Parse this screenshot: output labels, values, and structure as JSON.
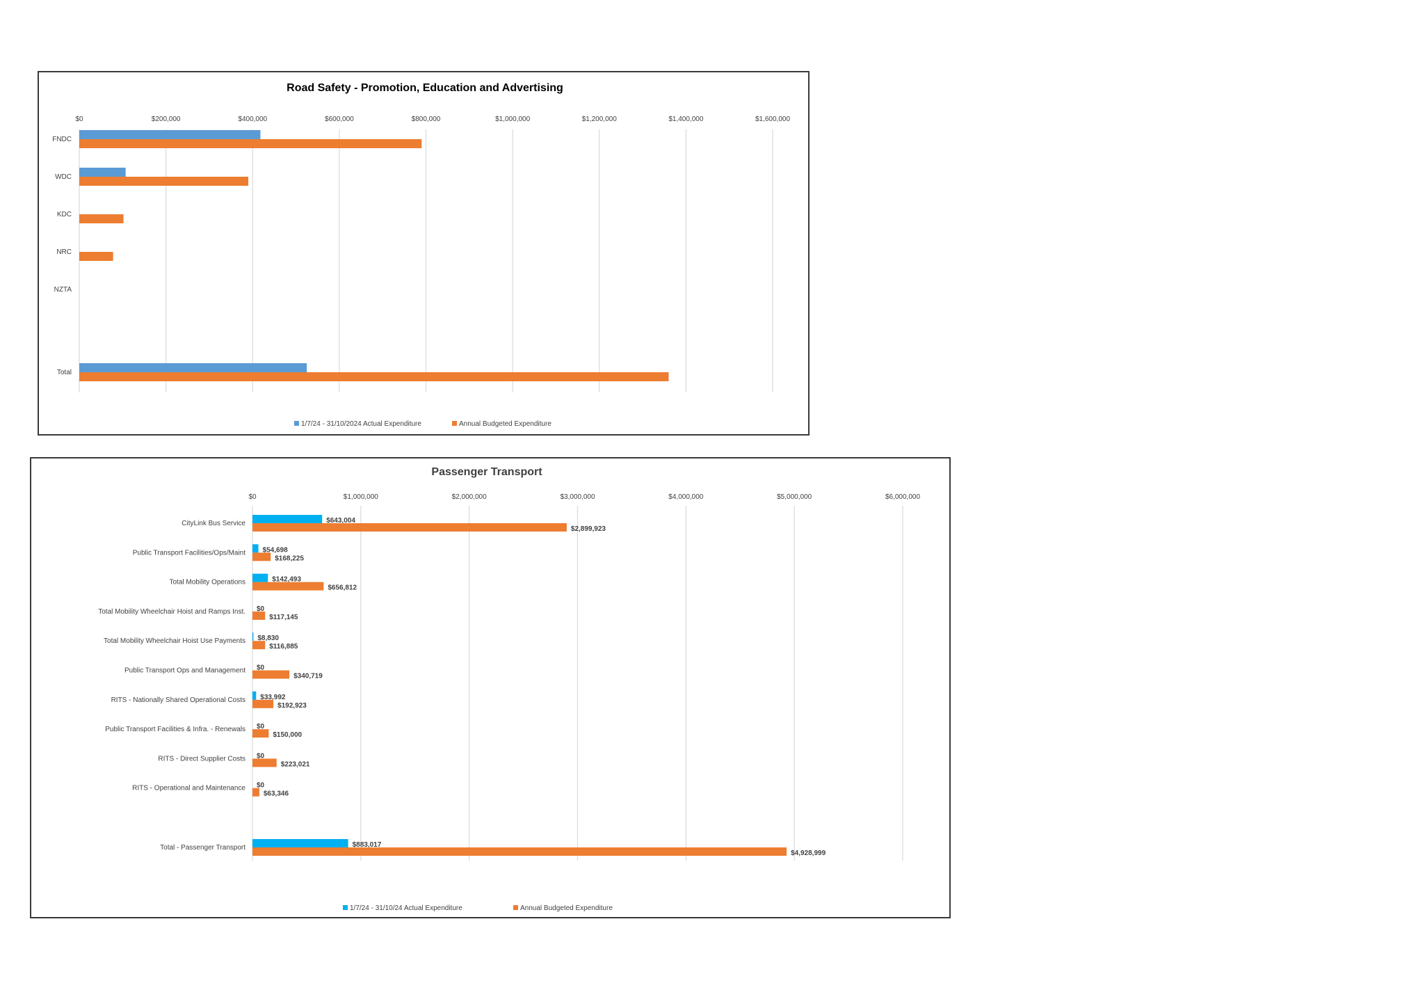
{
  "chart_data": [
    {
      "type": "bar",
      "orientation": "horizontal",
      "title": "Road Safety - Promotion, Education and Advertising",
      "categories": [
        "FNDC",
        "WDC",
        "KDC",
        "NRC",
        "NZTA",
        "Total"
      ],
      "series": [
        {
          "name": "1/7/24 - 31/10/2024 Actual Expenditure",
          "values": [
            418000,
            107000,
            0,
            0,
            0,
            525000
          ],
          "color": "#5b9bd5"
        },
        {
          "name": "Annual Budgeted Expenditure",
          "values": [
            790000,
            390000,
            102000,
            78000,
            0,
            1360000
          ],
          "color": "#ed7d31"
        }
      ],
      "xlim": [
        0,
        1600000
      ],
      "xticks": [
        "$0",
        "$200,000",
        "$400,000",
        "$600,000",
        "$800,000",
        "$1,000,000",
        "$1,200,000",
        "$1,400,000",
        "$1,600,000"
      ],
      "grid": true,
      "legend": "bottom",
      "data_labels": false
    },
    {
      "type": "bar",
      "orientation": "horizontal",
      "title": "Passenger Transport",
      "categories": [
        "CityLink Bus Service",
        "Public Transport Facilities/Ops/Maint",
        "Total Mobility Operations",
        "Total Mobility Wheelchair Hoist and Ramps Inst.",
        "Total Mobility Wheelchair Hoist Use Payments",
        "Public Transport Ops and Management",
        "RITS - Nationally Shared Operational Costs",
        "Public Transport Facilities & Infra. - Renewals",
        "RITS - Direct Supplier Costs",
        "RITS - Operational and Maintenance",
        "Total - Passenger Transport"
      ],
      "series": [
        {
          "name": "1/7/24 - 31/10/24 Actual Expenditure",
          "values": [
            643004,
            54698,
            142493,
            0,
            8830,
            0,
            33992,
            0,
            0,
            0,
            883017
          ],
          "labels": [
            "$643,004",
            "$54,698",
            "$142,493",
            "$0",
            "$8,830",
            "$0",
            "$33,992",
            "$0",
            "$0",
            "$0",
            "$883,017"
          ],
          "color": "#00b0f0"
        },
        {
          "name": "Annual Budgeted Expenditure",
          "values": [
            2899923,
            168225,
            656812,
            117145,
            116885,
            340719,
            192923,
            150000,
            223021,
            63346,
            4928999
          ],
          "labels": [
            "$2,899,923",
            "$168,225",
            "$656,812",
            "$117,145",
            "$116,885",
            "$340,719",
            "$192,923",
            "$150,000",
            "$223,021",
            "$63,346",
            "$4,928,999"
          ],
          "color": "#ed7d31"
        }
      ],
      "xlim": [
        0,
        6000000
      ],
      "xticks": [
        "$0",
        "$1,000,000",
        "$2,000,000",
        "$3,000,000",
        "$4,000,000",
        "$5,000,000",
        "$6,000,000"
      ],
      "grid": true,
      "legend": "bottom",
      "data_labels": true
    }
  ]
}
